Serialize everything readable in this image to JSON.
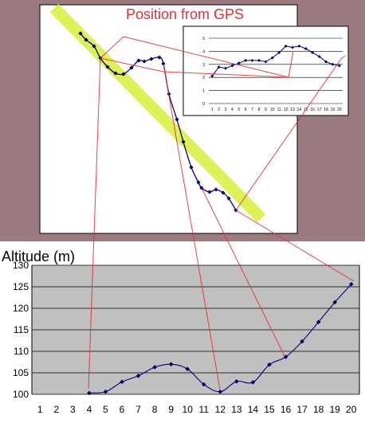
{
  "gps_panel": {
    "title": "Position from GPS"
  },
  "chart_data": [
    {
      "type": "scatter",
      "name": "gps-track",
      "points": [
        [
          1,
          1.7
        ],
        [
          2,
          2.0
        ],
        [
          3,
          2.4
        ],
        [
          4,
          3.4
        ],
        [
          5,
          3.9
        ],
        [
          6,
          4.4
        ],
        [
          7,
          4.5
        ],
        [
          8,
          4.2
        ],
        [
          9,
          3.7
        ],
        [
          10,
          3.2
        ],
        [
          11,
          3.2
        ],
        [
          12,
          3.4
        ],
        [
          13,
          4.4
        ],
        [
          14,
          7.6
        ],
        [
          15,
          8.6
        ],
        [
          16,
          11.4
        ],
        [
          17,
          12.4
        ],
        [
          18,
          13.2
        ],
        [
          19,
          13.6
        ],
        [
          20,
          14.1
        ],
        [
          21,
          13.8
        ],
        [
          22,
          14.4
        ],
        [
          23,
          15.0
        ]
      ],
      "highlight_band": true,
      "axes_visible": false
    },
    {
      "type": "line",
      "name": "inset-altitude",
      "categories": [
        "1",
        "2",
        "3",
        "4",
        "5",
        "6",
        "7",
        "8",
        "9",
        "10",
        "11",
        "12",
        "13",
        "14",
        "15",
        "16",
        "17",
        "18",
        "19",
        "20"
      ],
      "y_ticks": [
        "0",
        "1",
        "2",
        "3",
        "4",
        "5"
      ],
      "values": [
        2.1,
        2.8,
        2.7,
        2.9,
        3.1,
        3.3,
        3.3,
        3.3,
        3.2,
        3.5,
        3.9,
        4.4,
        4.3,
        4.4,
        4.2,
        3.9,
        3.6,
        3.2,
        3.0,
        2.9
      ],
      "ylim": [
        0,
        5
      ],
      "grid": true
    },
    {
      "type": "line",
      "name": "altitude",
      "ylabel": "Altitude (m)",
      "categories": [
        "1",
        "2",
        "3",
        "4",
        "5",
        "6",
        "7",
        "8",
        "9",
        "10",
        "11",
        "12",
        "13",
        "14",
        "15",
        "16",
        "17",
        "18",
        "19",
        "20"
      ],
      "x": [
        4,
        5,
        6,
        7,
        8,
        9,
        10,
        11,
        12,
        13,
        14,
        15,
        16,
        17,
        18,
        19,
        20
      ],
      "values": [
        100.3,
        100.6,
        102.9,
        104.3,
        106.3,
        107.0,
        105.9,
        102.3,
        100.6,
        103.0,
        102.8,
        106.9,
        108.7,
        112.3,
        116.8,
        121.4,
        125.6
      ],
      "ylim": [
        100,
        130
      ],
      "y_ticks": [
        100,
        105,
        110,
        115,
        120,
        125,
        130
      ],
      "grid": true,
      "background": "#c0c0c0"
    }
  ],
  "colors": {
    "line": "#000080",
    "marker": "#000060",
    "connector": "#e0303a",
    "band": "#d8ee3c",
    "title": "#e0303a",
    "page_bg": "#9b7b7f"
  }
}
